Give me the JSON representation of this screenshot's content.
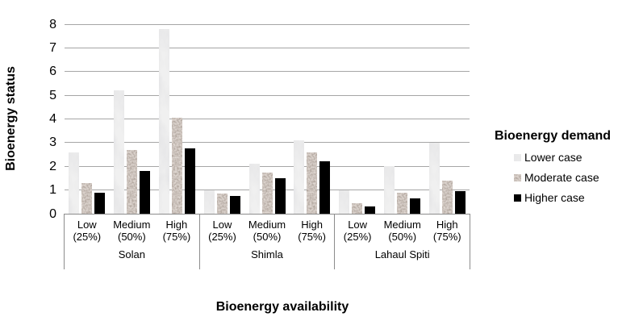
{
  "chart_data": {
    "type": "bar",
    "title": "",
    "ylabel": "Bioenergy status",
    "xlabel": "Bioenergy availability",
    "ylim": [
      0,
      8
    ],
    "yticks": [
      0,
      1,
      2,
      3,
      4,
      5,
      6,
      7,
      8
    ],
    "grid": "horizontal",
    "legend_title": "Bioenergy demand",
    "legend_position": "right",
    "regions": [
      "Solan",
      "Shimla",
      "Lahaul Spiti"
    ],
    "categories": [
      {
        "label": "Low",
        "sub": "(25%)"
      },
      {
        "label": "Medium",
        "sub": "(50%)"
      },
      {
        "label": "High",
        "sub": "(75%)"
      }
    ],
    "series": [
      {
        "name": "Lower case",
        "texture": "marble",
        "color": "#f0f0f0",
        "values": [
          [
            2.6,
            5.2,
            7.8
          ],
          [
            1.0,
            2.1,
            3.1
          ],
          [
            1.0,
            2.0,
            3.0
          ]
        ]
      },
      {
        "name": "Moderate case",
        "texture": "granite",
        "color": "#97866f",
        "values": [
          [
            1.3,
            2.7,
            4.05
          ],
          [
            0.85,
            1.75,
            2.6
          ],
          [
            0.45,
            0.9,
            1.4
          ]
        ]
      },
      {
        "name": "Higher case",
        "texture": "black",
        "color": "#000000",
        "values": [
          [
            0.9,
            1.8,
            2.75
          ],
          [
            0.75,
            1.5,
            2.2
          ],
          [
            0.3,
            0.65,
            0.95
          ]
        ]
      }
    ],
    "colors": {
      "gridline": "#a6a6a6",
      "axis_box": "#8c8c8c",
      "text": "#000000",
      "background": "#ffffff"
    }
  }
}
